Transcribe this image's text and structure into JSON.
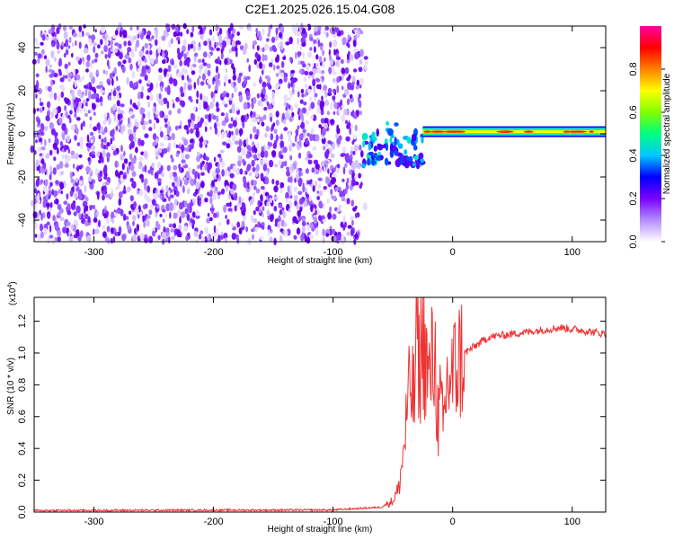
{
  "title": "C2E1.2025.026.15.04.G08",
  "chart_data": [
    {
      "type": "heatmap",
      "xlabel": "Height of straight line (km)",
      "ylabel": "Frequency (Hz)",
      "xlim": [
        -350,
        128
      ],
      "ylim": [
        -50,
        50
      ],
      "xticks": [
        -300,
        -200,
        -100,
        0,
        100
      ],
      "yticks": [
        -40,
        -20,
        0,
        20,
        40
      ],
      "noise_region": {
        "x_from": -350,
        "x_to": -75,
        "freq_from": -50,
        "freq_to": 50
      },
      "signal_transition": {
        "x_from": -75,
        "x_to": -25,
        "freq_from": -15,
        "freq_to": 7
      },
      "signal_band": {
        "x_from": -25,
        "x_to": 128,
        "center_freq": 1,
        "half_width": 2.5
      }
    },
    {
      "type": "colorbar",
      "label": "Normalized spectral amplitude",
      "range": [
        0,
        1
      ],
      "ticks": [
        0.0,
        0.2,
        0.4,
        0.6,
        0.8
      ],
      "colors": [
        "#ffffff",
        "#b48cff",
        "#7a00ff",
        "#0000ff",
        "#00c8ff",
        "#00ff80",
        "#80ff00",
        "#ffff00",
        "#ff8000",
        "#ff0000",
        "#ff00a0"
      ]
    },
    {
      "type": "line",
      "xlabel": "Height of straight line (km)",
      "ylabel": "SNR (10 * v/v)",
      "yscale_label": "(x10",
      "yscale_exp": "4",
      "yscale_close": ")",
      "xlim": [
        -350,
        128
      ],
      "ylim": [
        0,
        1.35
      ],
      "xticks": [
        -300,
        -200,
        -100,
        0,
        100
      ],
      "yticks": [
        0.0,
        0.2,
        0.4,
        0.6,
        0.8,
        1.0,
        1.2
      ],
      "color": "#ee3333",
      "x": [
        -350,
        -200,
        -100,
        -60,
        -50,
        -45,
        -40,
        -38,
        -35,
        -32,
        -30,
        -28,
        -25,
        -22,
        -20,
        -18,
        -15,
        -12,
        -10,
        -8,
        -5,
        -2,
        0,
        5,
        10,
        20,
        30,
        50,
        70,
        80,
        90,
        100,
        110,
        128
      ],
      "values": [
        0.01,
        0.012,
        0.013,
        0.03,
        0.07,
        0.15,
        0.45,
        0.65,
        0.8,
        0.7,
        1.3,
        0.9,
        1.1,
        0.95,
        0.8,
        0.9,
        1.0,
        0.55,
        0.7,
        0.5,
        0.8,
        0.85,
        0.85,
        0.95,
        1.0,
        1.05,
        1.1,
        1.12,
        1.14,
        1.15,
        1.16,
        1.15,
        1.14,
        1.12
      ]
    }
  ]
}
